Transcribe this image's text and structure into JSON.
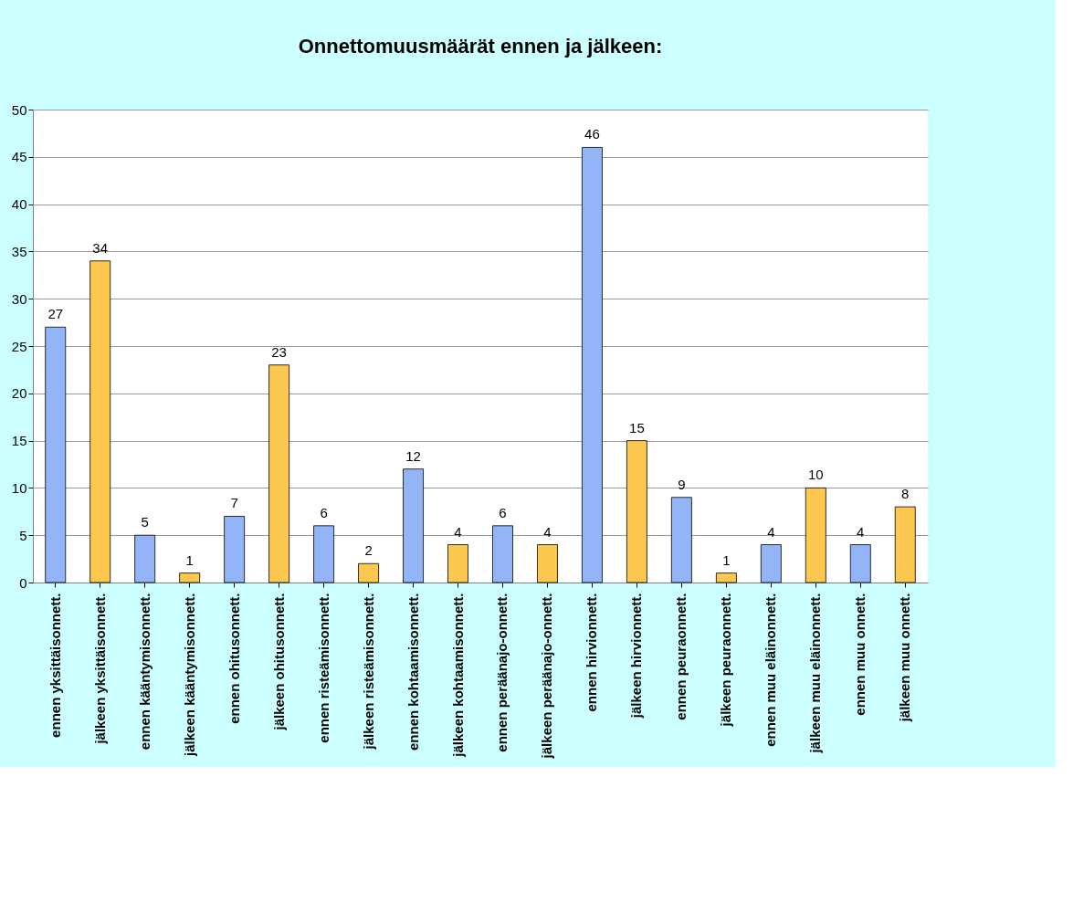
{
  "chart_data": {
    "type": "bar",
    "title": "Onnettomuusmäärät ennen ja jälkeen:",
    "categories": [
      "ennen yksittäisonnett.",
      "jälkeen yksittäisonnett.",
      "ennen kääntymisonnett.",
      "jälkeen kääntymisonnett.",
      "ennen ohitusonnett.",
      "jälkeen ohitusonnett.",
      "ennen risteämisonnett.",
      "jälkeen risteämisonnett.",
      "ennen kohtaamisonnett.",
      "jälkeen kohtaamisonnett.",
      "ennen peräänajo-onnett.",
      "jälkeen peräänajo-onnett.",
      "ennen hirvionnett.",
      "jälkeen hirvionnett.",
      "ennen peuraonnett.",
      "jälkeen peuraonnett.",
      "ennen muu eläinonnett.",
      "jälkeen muu eläinonnett.",
      "ennen muu onnett.",
      "jälkeen muu onnett."
    ],
    "values": [
      27,
      34,
      5,
      1,
      7,
      23,
      6,
      2,
      12,
      4,
      6,
      4,
      46,
      15,
      9,
      1,
      4,
      10,
      4,
      8
    ],
    "colors": [
      "#94b4f8",
      "#fcc850",
      "#94b4f8",
      "#fcc850",
      "#94b4f8",
      "#fcc850",
      "#94b4f8",
      "#fcc850",
      "#94b4f8",
      "#fcc850",
      "#94b4f8",
      "#fcc850",
      "#94b4f8",
      "#fcc850",
      "#94b4f8",
      "#fcc850",
      "#94b4f8",
      "#fcc850",
      "#94b4f8",
      "#fcc850"
    ],
    "ylim": [
      0,
      50
    ],
    "yticks": [
      0,
      5,
      10,
      15,
      20,
      25,
      30,
      35,
      40,
      45,
      50
    ],
    "grid": "y",
    "data_labels": true
  }
}
